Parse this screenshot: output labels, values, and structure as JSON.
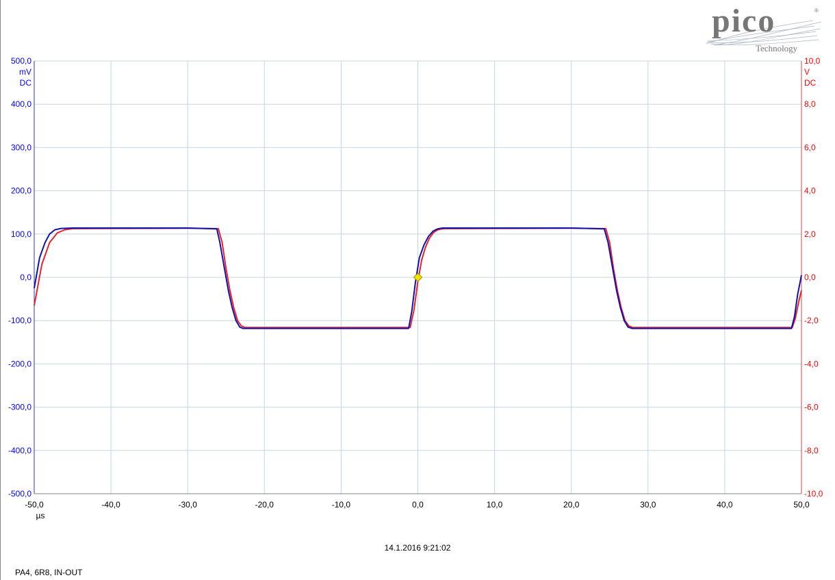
{
  "logo": {
    "word": "pico",
    "sub": "Technology",
    "mark": "®",
    "color": "#7a7a7a"
  },
  "timestamp": "14.1.2016 9:21:02",
  "caption": "PA4, 6R8, IN-OUT",
  "chart_data": {
    "type": "line",
    "x_axis": {
      "range": [
        -50,
        50
      ],
      "ticks": [
        -50,
        -40,
        -30,
        -20,
        -10,
        0,
        10,
        20,
        30,
        40,
        50
      ],
      "tick_labels": [
        "-50,0",
        "-40,0",
        "-30,0",
        "-20,0",
        "-10,0",
        "0,0",
        "10,0",
        "20,0",
        "30,0",
        "40,0",
        "50,0"
      ],
      "unit": "µs"
    },
    "y_left": {
      "range": [
        -500,
        500
      ],
      "ticks": [
        500,
        400,
        300,
        200,
        100,
        0,
        -100,
        -200,
        -300,
        -400,
        -500
      ],
      "tick_labels": [
        "500,0",
        "400,0",
        "300,0",
        "200,0",
        "100,0",
        "0,0",
        "-100,0",
        "-200,0",
        "-300,0",
        "-400,0",
        "-500,0"
      ],
      "unit": "mV",
      "coupling": "DC",
      "color": "#0000ff"
    },
    "y_right": {
      "range": [
        -10,
        10
      ],
      "ticks": [
        10,
        8,
        6,
        4,
        2,
        0,
        -2,
        -4,
        -6,
        -8,
        -10
      ],
      "tick_labels": [
        "10,0",
        "8,0",
        "6,0",
        "4,0",
        "2,0",
        "0,0",
        "-2,0",
        "-4,0",
        "-6,0",
        "-8,0",
        "-10,0"
      ],
      "unit": "V",
      "coupling": "DC",
      "color": "#ff0000"
    },
    "grid": true,
    "series": [
      {
        "axis": "right",
        "color": "#e8202a",
        "x": [
          -50,
          -49,
          -48,
          -47,
          -46,
          -45,
          -40,
          -30,
          -26,
          -25.5,
          -25,
          -24.5,
          -24,
          -23.5,
          -23,
          -22.5,
          -20,
          -10,
          -1,
          -0.5,
          0,
          0.5,
          1,
          1.5,
          2,
          2.5,
          3,
          3.5,
          10,
          20,
          24.5,
          25,
          25.5,
          26,
          26.5,
          27,
          27.5,
          28,
          30,
          40,
          48.8,
          49.2,
          49.6,
          50
        ],
        "y": [
          -1.3,
          0.6,
          1.6,
          2.05,
          2.2,
          2.25,
          2.26,
          2.27,
          2.25,
          1.6,
          0.4,
          -0.6,
          -1.4,
          -2.0,
          -2.25,
          -2.32,
          -2.32,
          -2.32,
          -2.32,
          -1.5,
          -0.2,
          0.8,
          1.4,
          1.8,
          2.05,
          2.18,
          2.23,
          2.25,
          2.26,
          2.27,
          2.25,
          1.6,
          0.4,
          -0.6,
          -1.4,
          -2.0,
          -2.25,
          -2.32,
          -2.32,
          -2.32,
          -2.32,
          -1.9,
          -1.2,
          -0.6
        ]
      },
      {
        "axis": "left",
        "color": "#1010b0",
        "x": [
          -50,
          -49.3,
          -48.6,
          -48,
          -47.3,
          -46.5,
          -45,
          -40,
          -30,
          -26.2,
          -25.8,
          -25.2,
          -24.7,
          -24.2,
          -23.7,
          -23.2,
          -22.8,
          -20,
          -10,
          -1.2,
          -0.8,
          -0.3,
          0.2,
          0.8,
          1.4,
          2,
          2.6,
          3.2,
          10,
          20,
          24.3,
          24.8,
          25.4,
          25.9,
          26.4,
          26.9,
          27.4,
          27.9,
          30,
          40,
          48.7,
          49.1,
          49.5,
          50
        ],
        "y": [
          -25,
          45,
          80,
          100,
          110,
          113,
          114,
          114,
          114,
          112,
          80,
          20,
          -30,
          -70,
          -100,
          -115,
          -118,
          -118,
          -118,
          -118,
          -80,
          -10,
          45,
          75,
          95,
          107,
          112,
          114,
          114,
          114,
          112,
          80,
          20,
          -30,
          -70,
          -100,
          -115,
          -118,
          -118,
          -118,
          -118,
          -90,
          -40,
          5
        ]
      }
    ],
    "trigger_marker": {
      "x": 0,
      "y_left": 0
    }
  }
}
